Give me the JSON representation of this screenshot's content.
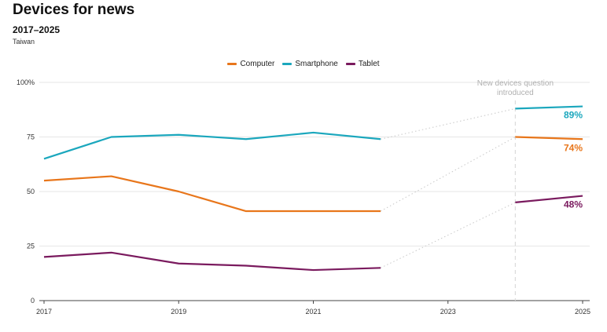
{
  "chart_data": {
    "type": "line",
    "title": "Devices for news",
    "subtitle": "2017–2025",
    "region": "Taiwan",
    "x": [
      2017,
      2018,
      2019,
      2020,
      2021,
      2022,
      2024,
      2025
    ],
    "xticks": [
      2017,
      2019,
      2021,
      2023,
      2025
    ],
    "ylim": [
      0,
      100
    ],
    "yticks": [
      0,
      25,
      50,
      75,
      100
    ],
    "ytick_labels": [
      "0",
      "25",
      "50",
      "75",
      "100%"
    ],
    "break_after": 2022,
    "series": [
      {
        "name": "Computer",
        "color": "#e8761b",
        "values": [
          55,
          57,
          50,
          41,
          41,
          41,
          75,
          74
        ],
        "end_label": "74%"
      },
      {
        "name": "Smartphone",
        "color": "#1ba7bd",
        "values": [
          65,
          75,
          76,
          74,
          77,
          74,
          88,
          89
        ],
        "end_label": "89%"
      },
      {
        "name": "Tablet",
        "color": "#7a1a5e",
        "values": [
          20,
          22,
          17,
          16,
          14,
          15,
          45,
          48
        ],
        "end_label": "48%"
      }
    ],
    "annotation": {
      "lines": [
        "New devices question",
        "introduced"
      ],
      "x": 2024
    },
    "grid": true,
    "legend_position": "top-center"
  }
}
